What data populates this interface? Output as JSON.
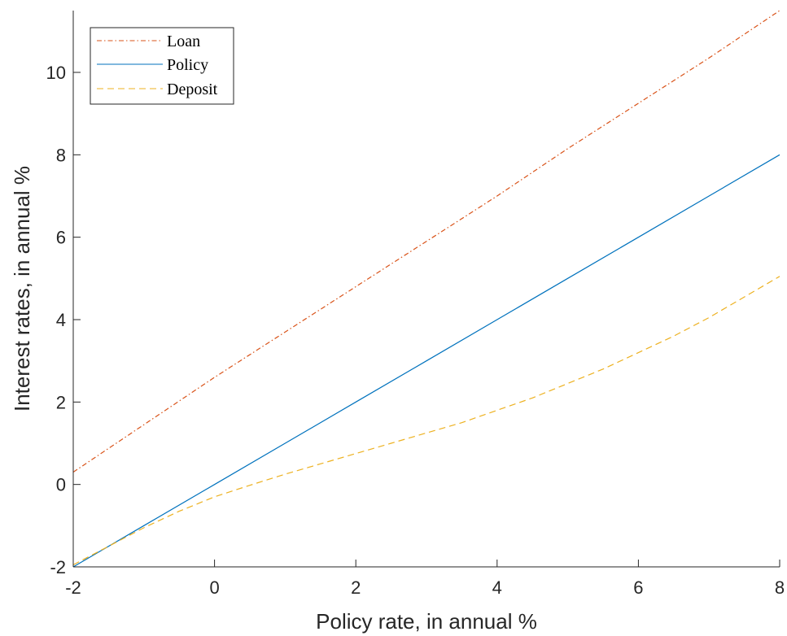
{
  "chart_data": {
    "type": "line",
    "xlabel": "Policy rate, in annual %",
    "ylabel": "Interest rates, in annual %",
    "xlim": [
      -2,
      8
    ],
    "ylim": [
      -2,
      11.5
    ],
    "xticks": [
      -2,
      0,
      2,
      4,
      6,
      8
    ],
    "yticks": [
      -2,
      0,
      2,
      4,
      6,
      8,
      10
    ],
    "grid": false,
    "legend_position": "top-left",
    "series": [
      {
        "name": "Loan",
        "color": "#D95319",
        "style": "dashdot",
        "x": [
          -2,
          -1,
          0,
          1,
          2,
          3,
          4,
          5,
          6,
          7,
          8
        ],
        "y": [
          0.3,
          1.45,
          2.6,
          3.7,
          4.8,
          5.9,
          7.0,
          8.15,
          9.25,
          10.35,
          11.5
        ]
      },
      {
        "name": "Policy",
        "color": "#0072BD",
        "style": "solid",
        "x": [
          -2,
          -1,
          0,
          1,
          2,
          3,
          4,
          5,
          6,
          7,
          8
        ],
        "y": [
          -2,
          -1,
          0,
          1,
          2,
          3,
          4,
          5,
          6,
          7,
          8
        ]
      },
      {
        "name": "Deposit",
        "color": "#EDB120",
        "style": "dashed",
        "x": [
          -2,
          -1.5,
          -1,
          -0.5,
          0,
          0.5,
          1,
          1.5,
          2,
          2.5,
          3,
          3.5,
          4,
          4.5,
          5,
          5.5,
          6,
          6.5,
          7,
          7.5,
          8
        ],
        "y": [
          -1.95,
          -1.5,
          -1.05,
          -0.65,
          -0.3,
          -0.02,
          0.25,
          0.5,
          0.75,
          1.0,
          1.25,
          1.5,
          1.8,
          2.1,
          2.45,
          2.8,
          3.2,
          3.6,
          4.05,
          4.55,
          5.05
        ]
      }
    ]
  }
}
